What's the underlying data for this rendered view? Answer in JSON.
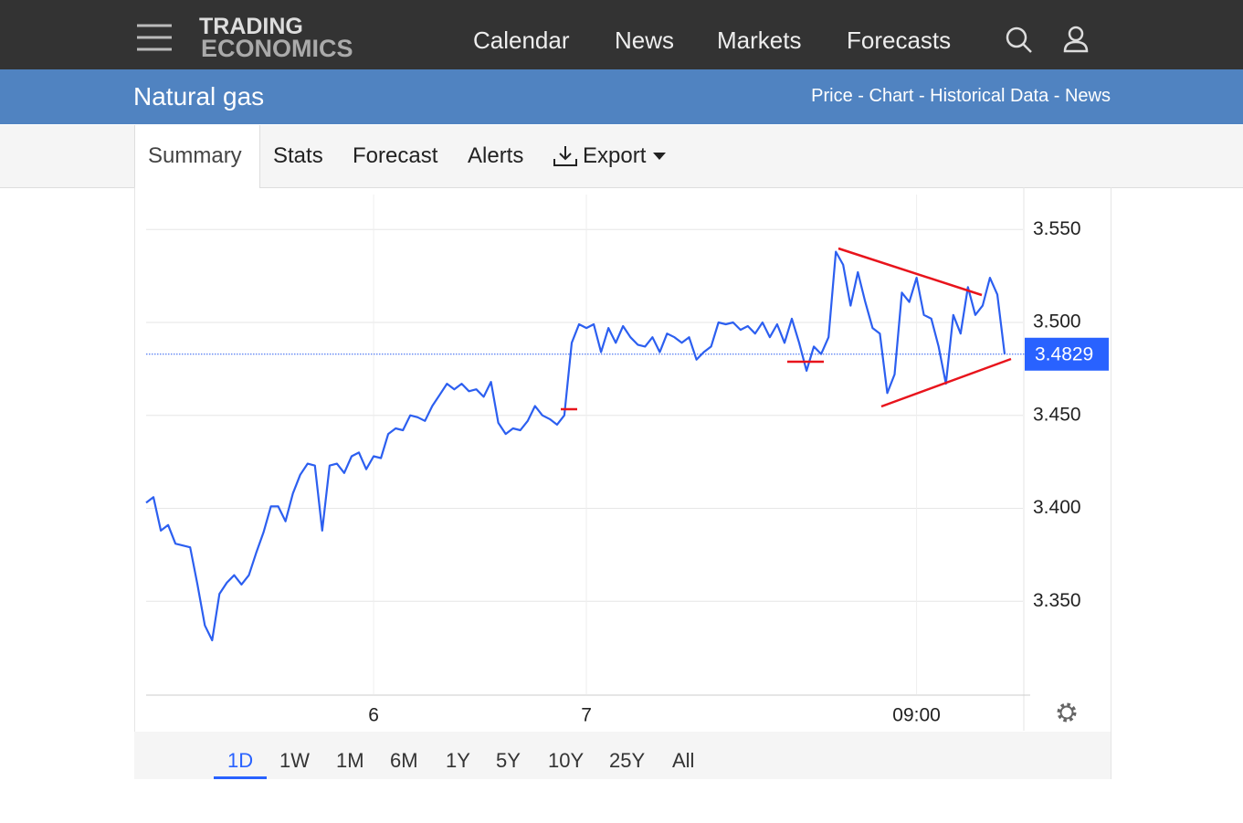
{
  "header": {
    "logo_top": "TRADING",
    "logo_bottom": "ECONOMICS",
    "nav": [
      "Calendar",
      "News",
      "Markets",
      "Forecasts"
    ]
  },
  "title_bar": {
    "title": "Natural gas",
    "links": "Price - Chart - Historical Data - News"
  },
  "tabs": [
    "Summary",
    "Stats",
    "Forecast",
    "Alerts",
    "Export"
  ],
  "ranges": [
    "1D",
    "1W",
    "1M",
    "6M",
    "1Y",
    "5Y",
    "10Y",
    "25Y",
    "All"
  ],
  "chart_data": {
    "type": "line",
    "color": "#2c5ff0",
    "grid": true,
    "ylim": [
      3.3,
      3.57
    ],
    "yticks": [
      {
        "value": 3.35,
        "label": "3.350"
      },
      {
        "value": 3.4,
        "label": "3.400"
      },
      {
        "value": 3.45,
        "label": "3.450"
      },
      {
        "value": 3.5,
        "label": "3.500"
      },
      {
        "value": 3.55,
        "label": "3.550"
      }
    ],
    "last_value": 3.4829,
    "categories": [
      null,
      null,
      null,
      null,
      null,
      null,
      null,
      null,
      null,
      null,
      null,
      null,
      null,
      null,
      null,
      null,
      null,
      null,
      null,
      null,
      null,
      null,
      null,
      null,
      null,
      null,
      null,
      null,
      null,
      null,
      null,
      "6",
      null,
      null,
      null,
      null,
      null,
      null,
      null,
      null,
      null,
      null,
      null,
      null,
      null,
      null,
      null,
      null,
      null,
      null,
      null,
      null,
      null,
      null,
      null,
      null,
      null,
      null,
      null,
      null,
      "7",
      null,
      null,
      null,
      null,
      null,
      null,
      null,
      null,
      null,
      null,
      null,
      null,
      null,
      null,
      null,
      null,
      null,
      null,
      null,
      null,
      null,
      null,
      null,
      null,
      null,
      null,
      null,
      null,
      null,
      null,
      null,
      null,
      null,
      null,
      null,
      null,
      null,
      null,
      null,
      null,
      null,
      null,
      null,
      null,
      "09:00",
      null,
      null,
      null,
      null,
      null,
      null,
      null,
      null,
      null,
      null,
      null,
      null
    ],
    "values": [
      3.403,
      3.406,
      3.388,
      3.391,
      3.381,
      3.38,
      3.379,
      3.359,
      3.337,
      3.329,
      3.354,
      3.36,
      3.364,
      3.359,
      3.364,
      3.376,
      3.387,
      3.401,
      3.401,
      3.393,
      3.408,
      3.418,
      3.424,
      3.423,
      3.388,
      3.423,
      3.424,
      3.419,
      3.428,
      3.43,
      3.421,
      3.428,
      3.427,
      3.44,
      3.443,
      3.442,
      3.45,
      3.449,
      3.447,
      3.455,
      3.461,
      3.467,
      3.464,
      3.467,
      3.463,
      3.464,
      3.46,
      3.468,
      3.446,
      3.44,
      3.443,
      3.442,
      3.447,
      3.455,
      3.45,
      3.448,
      3.445,
      3.45,
      3.489,
      3.499,
      3.497,
      3.499,
      3.484,
      3.497,
      3.489,
      3.498,
      3.492,
      3.488,
      3.487,
      3.492,
      3.484,
      3.494,
      3.492,
      3.489,
      3.492,
      3.48,
      3.484,
      3.487,
      3.5,
      3.499,
      3.5,
      3.496,
      3.498,
      3.494,
      3.5,
      3.492,
      3.499,
      3.489,
      3.502,
      3.489,
      3.474,
      3.487,
      3.483,
      3.492,
      3.538,
      3.531,
      3.509,
      3.527,
      3.511,
      3.497,
      3.494,
      3.462,
      3.472,
      3.516,
      3.511,
      3.524,
      3.504,
      3.502,
      3.487,
      3.467,
      3.504,
      3.494,
      3.519,
      3.504,
      3.509,
      3.524,
      3.515,
      3.483
    ]
  }
}
